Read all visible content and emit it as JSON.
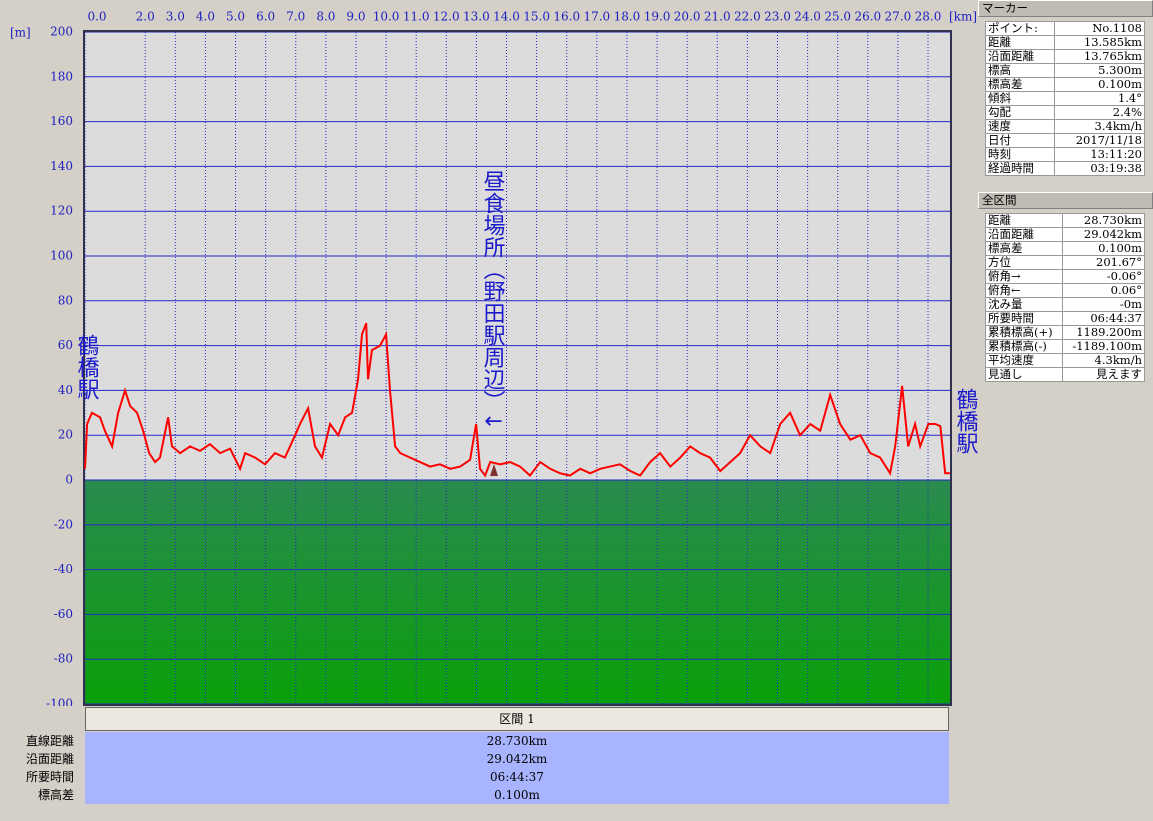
{
  "chart_data": {
    "type": "line",
    "x_label": "[km]",
    "y_label": "[m]",
    "x": [
      0,
      0.07,
      0.23,
      0.5,
      0.66,
      0.9,
      1.1,
      1.33,
      1.5,
      1.73,
      1.93,
      2.13,
      2.33,
      2.49,
      2.76,
      2.89,
      3.16,
      3.49,
      3.82,
      4.15,
      4.49,
      4.82,
      5.15,
      5.32,
      5.65,
      5.98,
      6.31,
      6.64,
      6.98,
      7.14,
      7.41,
      7.64,
      7.87,
      8.14,
      8.41,
      8.64,
      8.87,
      9.07,
      9.2,
      9.34,
      9.4,
      9.53,
      9.8,
      10.0,
      10.13,
      10.3,
      10.47,
      10.8,
      11.13,
      11.46,
      11.79,
      12.13,
      12.46,
      12.79,
      12.99,
      13.12,
      13.29,
      13.46,
      13.79,
      14.12,
      14.45,
      14.78,
      15.12,
      15.45,
      15.78,
      16.11,
      16.45,
      16.78,
      17.11,
      17.44,
      17.77,
      18.11,
      18.44,
      18.77,
      19.1,
      19.44,
      19.77,
      20.1,
      20.43,
      20.76,
      21.1,
      21.43,
      21.76,
      22.09,
      22.43,
      22.76,
      23.09,
      23.42,
      23.75,
      24.09,
      24.42,
      24.75,
      25.08,
      25.42,
      25.75,
      26.08,
      26.41,
      26.74,
      26.91,
      27.14,
      27.34,
      27.57,
      27.74,
      28.01,
      28.24,
      28.41,
      28.57,
      28.73
    ],
    "series": [
      {
        "color": "#ff0000",
        "values": [
          5,
          25,
          30,
          28,
          22,
          15,
          30,
          40,
          33,
          30,
          22,
          12,
          8,
          10,
          28,
          15,
          12,
          15,
          13,
          16,
          12,
          14,
          5,
          12,
          10,
          7,
          12,
          10,
          20,
          25,
          32,
          15,
          10,
          25,
          20,
          28,
          30,
          45,
          65,
          70,
          45,
          58,
          60,
          65,
          40,
          15,
          12,
          10,
          8,
          6,
          7,
          5,
          6,
          9,
          25,
          5,
          2,
          8,
          7,
          8,
          6,
          2,
          8,
          5,
          3,
          2,
          5,
          3,
          5,
          6,
          7,
          4,
          2,
          8,
          12,
          6,
          10,
          15,
          12,
          10,
          4,
          8,
          12,
          20,
          15,
          12,
          25,
          30,
          20,
          25,
          22,
          38,
          25,
          18,
          20,
          12,
          10,
          3,
          15,
          42,
          15,
          25,
          15,
          25,
          25,
          24,
          3,
          3
        ]
      }
    ],
    "xlim": [
      0,
      28.73
    ],
    "ylim": [
      -100,
      200
    ],
    "xticks": [
      {
        "value": 0,
        "label": "0.0"
      },
      {
        "value": 2,
        "label": "2.0"
      },
      {
        "value": 3,
        "label": "3.0"
      },
      {
        "value": 4,
        "label": "4.0"
      },
      {
        "value": 5,
        "label": "5.0"
      },
      {
        "value": 6,
        "label": "6.0"
      },
      {
        "value": 7,
        "label": "7.0"
      },
      {
        "value": 8,
        "label": "8.0"
      },
      {
        "value": 9,
        "label": "9.0"
      },
      {
        "value": 10,
        "label": "10.0"
      },
      {
        "value": 11,
        "label": "11.0"
      },
      {
        "value": 12,
        "label": "12.0"
      },
      {
        "value": 13,
        "label": "13.0"
      },
      {
        "value": 14,
        "label": "14.0"
      },
      {
        "value": 15,
        "label": "15.0"
      },
      {
        "value": 16,
        "label": "16.0"
      },
      {
        "value": 17,
        "label": "17.0"
      },
      {
        "value": 18,
        "label": "18.0"
      },
      {
        "value": 19,
        "label": "19.0"
      },
      {
        "value": 20,
        "label": "20.0"
      },
      {
        "value": 21,
        "label": "21.0"
      },
      {
        "value": 22,
        "label": "22.0"
      },
      {
        "value": 23,
        "label": "23.0"
      },
      {
        "value": 24,
        "label": "24.0"
      },
      {
        "value": 25,
        "label": "25.0"
      },
      {
        "value": 26,
        "label": "26.0"
      },
      {
        "value": 27,
        "label": "27.0"
      },
      {
        "value": 28,
        "label": "28.0"
      }
    ],
    "yticks": [
      200,
      180,
      160,
      140,
      120,
      100,
      80,
      60,
      40,
      20,
      0,
      -20,
      -40,
      -60,
      -80,
      -100
    ],
    "grid": true,
    "annotations": [
      "鶴橋駅",
      "昼食場所（野田駅周辺）↓",
      "鶴橋駅"
    ]
  },
  "marker_panel": {
    "title": "マーカー",
    "rows": [
      [
        "ポイント:",
        "No.1108"
      ],
      [
        "距離",
        "13.585km"
      ],
      [
        "沿面距離",
        "13.765km"
      ],
      [
        "標高",
        "5.300m"
      ],
      [
        "標高差",
        "0.100m"
      ],
      [
        "傾斜",
        "1.4°"
      ],
      [
        "勾配",
        "2.4%"
      ],
      [
        "速度",
        "3.4km/h"
      ],
      [
        "日付",
        "2017/11/18"
      ],
      [
        "時刻",
        "13:11:20"
      ],
      [
        "経過時間",
        "03:19:38"
      ]
    ]
  },
  "total_panel": {
    "title": "全区間",
    "rows": [
      [
        "距離",
        "28.730km"
      ],
      [
        "沿面距離",
        "29.042km"
      ],
      [
        "標高差",
        "0.100m"
      ],
      [
        "方位",
        "201.67°"
      ],
      [
        "俯角→",
        "-0.06°"
      ],
      [
        "俯角←",
        "0.06°"
      ],
      [
        "沈み量",
        "-0m"
      ],
      [
        "所要時間",
        "06:44:37"
      ],
      [
        "累積標高(+)",
        "1189.200m"
      ],
      [
        "累積標高(-)",
        "-1189.100m"
      ],
      [
        "平均速度",
        "4.3km/h"
      ],
      [
        "見通し",
        "見えます"
      ]
    ]
  },
  "section_table": {
    "header": "区間 1",
    "rows": [
      [
        "直線距離",
        "28.730km"
      ],
      [
        "沿面距離",
        "29.042km"
      ],
      [
        "所要時間",
        "06:44:37"
      ],
      [
        "標高差",
        "0.100m"
      ]
    ]
  }
}
